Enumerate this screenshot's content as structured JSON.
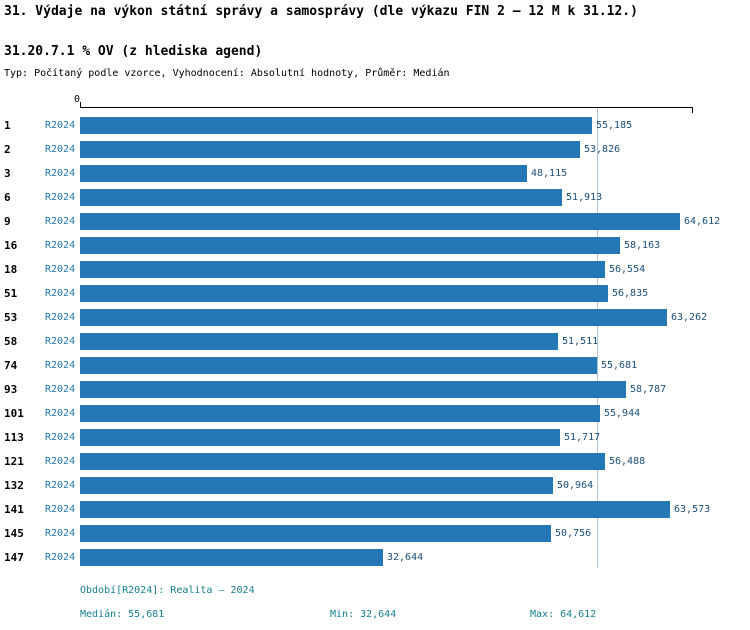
{
  "header": {
    "title": "31. Výdaje na výkon státní správy a samosprávy (dle výkazu FIN 2 – 12 M k 31.12.)",
    "subtitle": "31.20.7.1 % OV (z hlediska agend)",
    "meta": "Typ: Počítaný podle vzorce, Vyhodnocení: Absolutní hodnoty, Průměr: Medián"
  },
  "chart_data": {
    "type": "bar",
    "orientation": "horizontal",
    "axis_zero_label": "0",
    "series_label": "R2024",
    "categories": [
      "1",
      "2",
      "3",
      "6",
      "9",
      "16",
      "18",
      "51",
      "53",
      "58",
      "74",
      "93",
      "101",
      "113",
      "121",
      "132",
      "141",
      "145",
      "147"
    ],
    "values": [
      55185,
      53826,
      48115,
      51913,
      64612,
      58163,
      56554,
      56835,
      63262,
      51511,
      55681,
      58787,
      55944,
      51717,
      56488,
      50964,
      63573,
      50756,
      32644
    ],
    "value_labels": [
      "55,185",
      "53,826",
      "48,115",
      "51,913",
      "64,612",
      "58,163",
      "56,554",
      "56,835",
      "63,262",
      "51,511",
      "55,681",
      "58,787",
      "55,944",
      "51,717",
      "56,488",
      "50,964",
      "63,573",
      "50,756",
      "32,644"
    ],
    "xlim": [
      0,
      64612
    ],
    "median": 55681,
    "grid": "single vertical line at median",
    "legend_position": "none"
  },
  "colors": {
    "bar": "#2478b5",
    "value_text": "#1a4e7a",
    "series_text": "#2478b5",
    "grid_line": "#a9c4d6",
    "footer_text": "#16808e",
    "axis": "#000000"
  },
  "footer": {
    "period": "Období[R2024]: Realita – 2024",
    "median": "Medián: 55,681",
    "min": "Min: 32,644",
    "max": "Max: 64,612"
  }
}
